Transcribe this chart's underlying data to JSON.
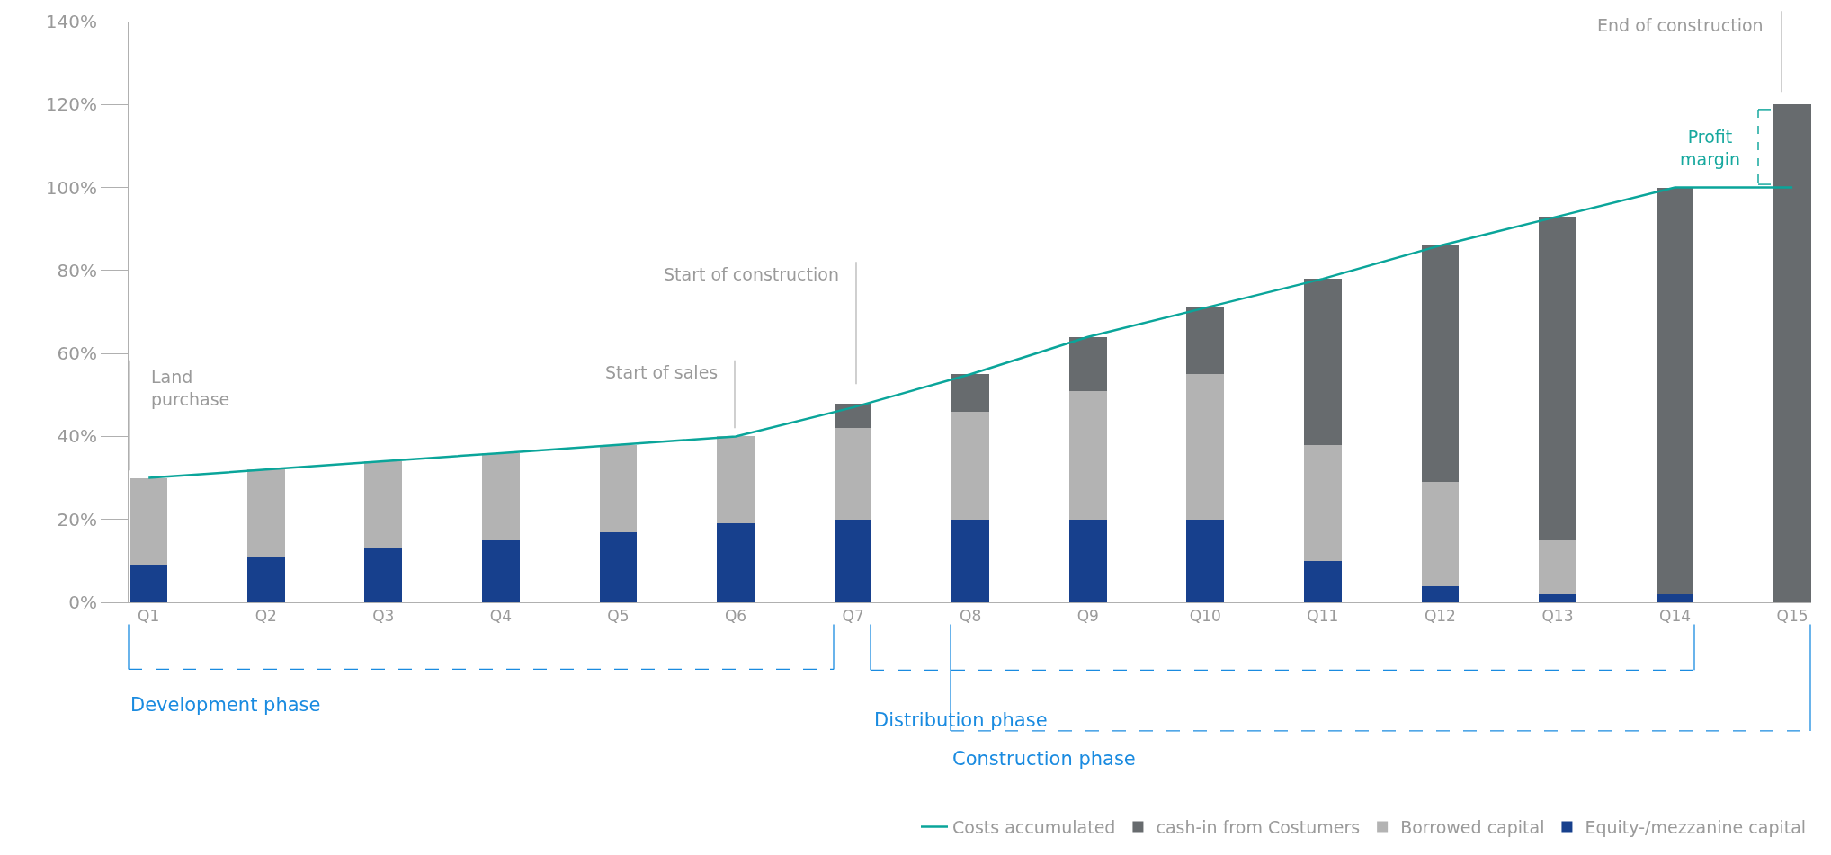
{
  "chart_data": {
    "type": "bar",
    "stacked": true,
    "categories": [
      "Q1",
      "Q2",
      "Q3",
      "Q4",
      "Q5",
      "Q6",
      "Q7",
      "Q8",
      "Q9",
      "Q10",
      "Q11",
      "Q12",
      "Q13",
      "Q14",
      "Q15"
    ],
    "series": [
      {
        "name": "Equity-/mezzanine capital",
        "color": "#17408d",
        "values": [
          9,
          11,
          13,
          15,
          17,
          19,
          20,
          20,
          20,
          20,
          10,
          4,
          2,
          2,
          0
        ]
      },
      {
        "name": "Borrowed capital",
        "color": "#b3b3b3",
        "values": [
          21,
          21,
          21,
          21,
          21,
          21,
          22,
          26,
          31,
          35,
          28,
          25,
          13,
          0,
          0
        ]
      },
      {
        "name": "cash-in from Costumers",
        "color": "#676b6e",
        "values": [
          0,
          0,
          0,
          0,
          0,
          0,
          6,
          9,
          13,
          16,
          40,
          57,
          78,
          98,
          120
        ]
      },
      {
        "name": "Costs accumulated",
        "color": "#0aa59a",
        "type": "line",
        "values": [
          30,
          32,
          34,
          36,
          38,
          40,
          47,
          55,
          64,
          71,
          78,
          86,
          93,
          100,
          100
        ]
      }
    ],
    "ylim": [
      0,
      140
    ],
    "yticks": [
      {
        "value": 0,
        "label": "0%"
      },
      {
        "value": 20,
        "label": "20%"
      },
      {
        "value": 40,
        "label": "40%"
      },
      {
        "value": 60,
        "label": "60%"
      },
      {
        "value": 80,
        "label": "80%"
      },
      {
        "value": 100,
        "label": "100%"
      },
      {
        "value": 120,
        "label": "120%"
      },
      {
        "value": 140,
        "label": "140%"
      }
    ],
    "grid": false,
    "legend": "bottom right",
    "marker": "none",
    "line_style": "solid",
    "annotations": [
      "Land purchase",
      "Start of sales",
      "Start of construction",
      "End of construction",
      "Profit margin",
      "Development phase",
      "Distribution phase",
      "Construction phase"
    ]
  }
}
